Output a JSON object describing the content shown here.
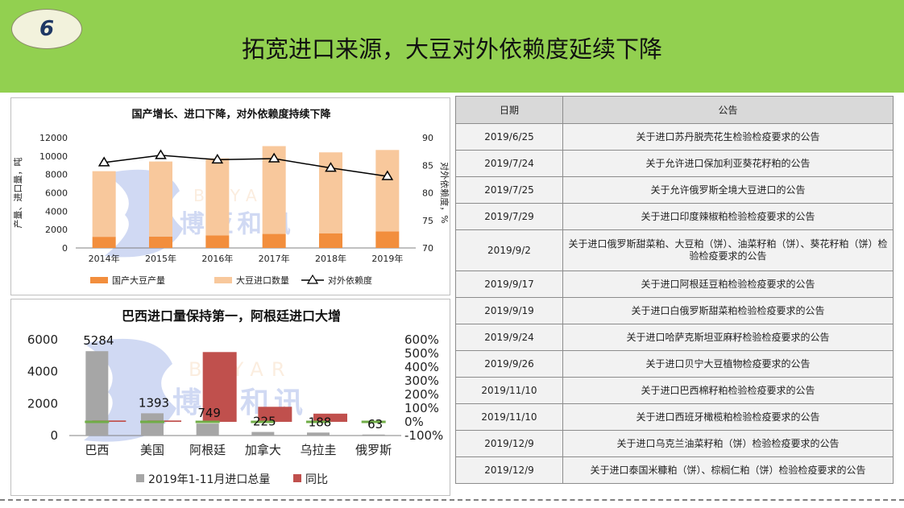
{
  "header": {
    "badge": "6",
    "title": "拓宽进口来源，大豆对外依赖度延续下降"
  },
  "watermark": {
    "latin": "BOYAR",
    "cn": "博亚和讯"
  },
  "chart1": {
    "title": "国产增长、进口下降，对外依赖度持续下降",
    "ylabel_left": "产量、进口量，吨",
    "ylabel_right": "对外依赖度，%",
    "left_ticks": [
      "0",
      "2000",
      "4000",
      "6000",
      "8000",
      "10000",
      "12000"
    ],
    "right_ticks": [
      "70",
      "75",
      "80",
      "85",
      "90"
    ],
    "legend": [
      "国产大豆产量",
      "大豆进口数量",
      "对外依赖度"
    ],
    "colors": {
      "domestic": "#f28e3d",
      "import": "#f8c89c",
      "line": "#000000"
    }
  },
  "chart2": {
    "title": "巴西进口量保持第一，阿根廷进口大增",
    "left_ticks": [
      "0",
      "2000",
      "4000",
      "6000"
    ],
    "right_ticks": [
      "-100%",
      "0%",
      "100%",
      "200%",
      "300%",
      "400%",
      "500%",
      "600%"
    ],
    "legend": [
      "2019年1-11月进口总量",
      "同比"
    ],
    "colors": {
      "total": "#a6a6a6",
      "yoy": "#c0504d",
      "marker": "#70ad47"
    }
  },
  "chart_data": [
    {
      "type": "bar",
      "title": "国产增长、进口下降，对外依赖度持续下降",
      "categories": [
        "2014年",
        "2015年",
        "2016年",
        "2017年",
        "2018年",
        "2019年"
      ],
      "series": [
        {
          "name": "国产大豆产量",
          "type": "bar",
          "stacked": true,
          "axis": "left",
          "values": [
            1215,
            1237,
            1360,
            1528,
            1600,
            1810
          ]
        },
        {
          "name": "大豆进口数量",
          "type": "bar",
          "stacked": true,
          "axis": "left",
          "values": [
            7140,
            8169,
            8391,
            9553,
            8803,
            8851
          ]
        },
        {
          "name": "对外依赖度",
          "type": "line",
          "axis": "right",
          "values": [
            85.5,
            86.8,
            86.0,
            86.2,
            84.5,
            83.0
          ]
        }
      ],
      "ylim_left": [
        0,
        12000
      ],
      "ylim_right": [
        70,
        90
      ],
      "legend_position": "bottom"
    },
    {
      "type": "bar",
      "title": "巴西进口量保持第一，阿根廷进口大增",
      "categories": [
        "巴西",
        "美国",
        "阿根廷",
        "加拿大",
        "乌拉圭",
        "俄罗斯"
      ],
      "series": [
        {
          "name": "2019年1-11月进口总量",
          "axis": "left",
          "values": [
            5284,
            1393,
            749,
            225,
            188,
            63
          ],
          "labels": [
            "5284",
            "1393",
            "749",
            "225",
            "188",
            "63"
          ]
        },
        {
          "name": "同比",
          "axis": "right",
          "values": [
            10,
            10,
            510,
            110,
            60,
            0
          ]
        }
      ],
      "ylim_left": [
        0,
        6000
      ],
      "ylim_right": [
        -100,
        600
      ],
      "legend_position": "bottom"
    }
  ],
  "table": {
    "headers": [
      "日期",
      "公告"
    ],
    "rows": [
      {
        "date": "2019/6/25",
        "text": "关于进口苏丹脱壳花生检验检疫要求的公告"
      },
      {
        "date": "2019/7/24",
        "text": "关于允许进口保加利亚葵花籽粕的公告"
      },
      {
        "date": "2019/7/25",
        "text": "关于允许俄罗斯全境大豆进口的公告"
      },
      {
        "date": "2019/7/29",
        "text": "关于进口印度辣椒粕检验检疫要求的公告"
      },
      {
        "date": "2019/9/2",
        "text": "关于进口俄罗斯甜菜粕、大豆粕（饼）、油菜籽粕（饼）、葵花籽粕（饼）检验检疫要求的公告"
      },
      {
        "date": "2019/9/17",
        "text": "关于进口阿根廷豆粕检验检疫要求的公告"
      },
      {
        "date": "2019/9/19",
        "text": "关于进口白俄罗斯甜菜粕检验检疫要求的公告"
      },
      {
        "date": "2019/9/24",
        "text": "关于进口哈萨克斯坦亚麻籽检验检疫要求的公告"
      },
      {
        "date": "2019/9/26",
        "text": "关于进口贝宁大豆植物检疫要求的公告"
      },
      {
        "date": "2019/11/10",
        "text": "关于进口巴西棉籽粕检验检疫要求的公告"
      },
      {
        "date": "2019/11/10",
        "text": "关于进口西班牙橄榄粕检验检疫要求的公告"
      },
      {
        "date": "2019/12/9",
        "text": "关于进口乌克兰油菜籽粕（饼）检验检疫要求的公告"
      },
      {
        "date": "2019/12/9",
        "text": "关于进口泰国米糠粕（饼）、棕榈仁粕（饼）检验检疫要求的公告"
      }
    ]
  }
}
